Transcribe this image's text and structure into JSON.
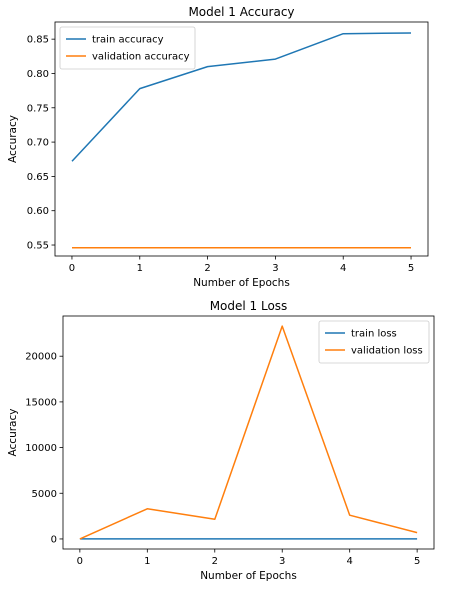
{
  "chart_data": [
    {
      "type": "line",
      "title": "Model 1 Accuracy",
      "xlabel": "Number of Epochs",
      "ylabel": "Accuracy",
      "x": [
        0,
        1,
        2,
        3,
        4,
        5
      ],
      "xticks": [
        "0",
        "1",
        "2",
        "3",
        "4",
        "5"
      ],
      "yticks": [
        "0.55",
        "0.60",
        "0.65",
        "0.70",
        "0.75",
        "0.80",
        "0.85"
      ],
      "xlim": [
        -0.25,
        5.25
      ],
      "ylim": [
        0.534,
        0.875
      ],
      "legend_position": "upper-left",
      "grid": false,
      "series": [
        {
          "name": "train accuracy",
          "color": "#1f77b4",
          "values": [
            0.672,
            0.778,
            0.81,
            0.821,
            0.858,
            0.859
          ]
        },
        {
          "name": "validation accuracy",
          "color": "#ff7f0e",
          "values": [
            0.546,
            0.546,
            0.546,
            0.546,
            0.546,
            0.546
          ]
        }
      ]
    },
    {
      "type": "line",
      "title": "Model 1 Loss",
      "xlabel": "Number of Epochs",
      "ylabel": "Accuracy",
      "x": [
        0,
        1,
        2,
        3,
        4,
        5
      ],
      "xticks": [
        "0",
        "1",
        "2",
        "3",
        "4",
        "5"
      ],
      "yticks": [
        "0",
        "5000",
        "10000",
        "15000",
        "20000"
      ],
      "xlim": [
        -0.25,
        5.25
      ],
      "ylim": [
        -1100,
        24400
      ],
      "legend_position": "upper-right",
      "grid": false,
      "series": [
        {
          "name": "train loss",
          "color": "#1f77b4",
          "values": [
            0.8,
            0.6,
            0.5,
            0.5,
            0.4,
            0.4
          ]
        },
        {
          "name": "validation loss",
          "color": "#ff7f0e",
          "values": [
            0,
            3300,
            2150,
            23300,
            2600,
            700
          ]
        }
      ]
    }
  ]
}
